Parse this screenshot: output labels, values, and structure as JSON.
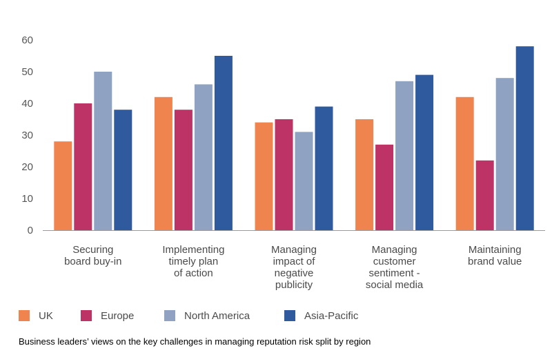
{
  "chart_data": {
    "type": "bar",
    "categories": [
      [
        "Securing",
        "board buy-in"
      ],
      [
        "Implementing",
        "timely plan",
        "of action"
      ],
      [
        "Managing",
        "impact of",
        "negative",
        "publicity"
      ],
      [
        "Managing",
        "customer",
        "sentiment -",
        "social media"
      ],
      [
        "Maintaining",
        "brand value"
      ]
    ],
    "series": [
      {
        "name": "UK",
        "color": "#F0844F",
        "values": [
          28,
          42,
          34,
          35,
          42
        ]
      },
      {
        "name": "Europe",
        "color": "#BE3366",
        "values": [
          40,
          38,
          35,
          27,
          22
        ]
      },
      {
        "name": "North America",
        "color": "#8FA2C1",
        "values": [
          50,
          46,
          31,
          47,
          48
        ]
      },
      {
        "name": "Asia-Pacific",
        "color": "#2F5A9E",
        "values": [
          38,
          55,
          39,
          49,
          58
        ]
      }
    ],
    "yticks": [
      0,
      10,
      20,
      30,
      40,
      50,
      60
    ],
    "ylim": [
      0,
      60
    ],
    "grid": false,
    "legend": "bottom-left"
  },
  "caption": "Business leaders’ views on the key challenges in managing reputation risk split by region"
}
